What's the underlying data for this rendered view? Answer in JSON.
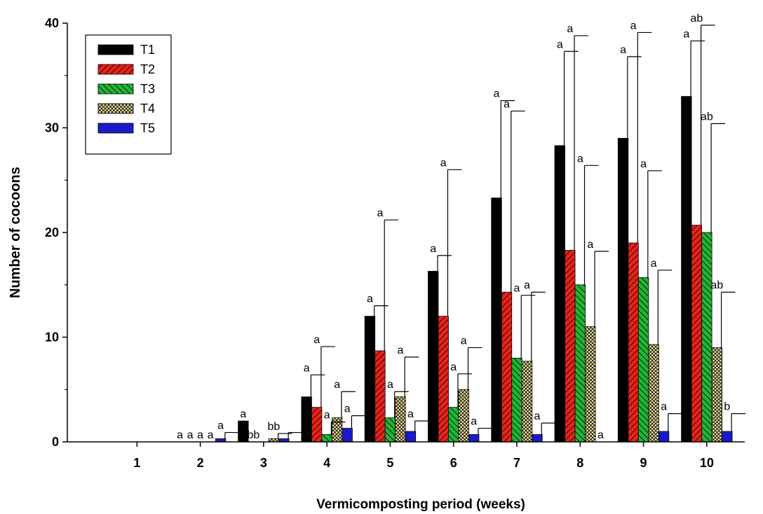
{
  "chart_data": {
    "type": "bar",
    "xlabel": "Vermicomposting period (weeks)",
    "ylabel": "Number of cocoons",
    "ylim": [
      0,
      40
    ],
    "yticks": [
      0,
      10,
      20,
      30,
      40
    ],
    "categories": [
      "1",
      "2",
      "3",
      "4",
      "5",
      "6",
      "7",
      "8",
      "9",
      "10"
    ],
    "legend_position": "top-left",
    "grid": false,
    "series": [
      {
        "name": "T1",
        "color": "#000000",
        "pattern": "solid",
        "values": [
          0,
          0,
          2.0,
          4.3,
          12.0,
          16.3,
          23.3,
          28.3,
          29.0,
          33.0
        ],
        "errors": [
          0,
          0,
          0,
          2.1,
          1.0,
          1.5,
          9.3,
          9.0,
          7.8,
          5.3
        ],
        "sig": [
          "",
          "a",
          "a",
          "a",
          "a",
          "a",
          "a",
          "a",
          "a",
          "a"
        ]
      },
      {
        "name": "T2",
        "color": "#e8231a",
        "pattern": "diag-right",
        "values": [
          0,
          0,
          0,
          3.3,
          8.7,
          12.0,
          14.3,
          18.3,
          19.0,
          20.7
        ],
        "errors": [
          0,
          0,
          0,
          5.8,
          12.5,
          14.0,
          17.3,
          20.5,
          20.1,
          19.1
        ],
        "sig": [
          "",
          "a",
          "bb",
          "a",
          "a",
          "a",
          "a",
          "a",
          "a",
          "ab"
        ]
      },
      {
        "name": "T3",
        "color": "#21b535",
        "pattern": "diag-left",
        "values": [
          0,
          0,
          0,
          0.7,
          2.3,
          3.3,
          8.0,
          15.0,
          15.7,
          20.0
        ],
        "errors": [
          0,
          0,
          0,
          1.2,
          2.5,
          3.2,
          6.0,
          11.4,
          10.2,
          10.4
        ],
        "sig": [
          "",
          "a",
          "",
          "a",
          "a",
          "a",
          "a",
          "a",
          "a",
          "ab"
        ]
      },
      {
        "name": "T4",
        "color": "#f2e6a0",
        "pattern": "cross",
        "values": [
          0,
          0,
          0.3,
          2.3,
          4.3,
          5.0,
          7.7,
          11.0,
          9.3,
          9.0
        ],
        "errors": [
          0,
          0,
          0.5,
          2.5,
          3.8,
          4.0,
          6.6,
          7.2,
          7.1,
          5.3
        ],
        "sig": [
          "",
          "a",
          "bb",
          "a",
          "a",
          "a",
          "a",
          "a",
          "a",
          "ab"
        ]
      },
      {
        "name": "T5",
        "color": "#1a1ac8",
        "pattern": "solid",
        "values": [
          0,
          0.3,
          0.3,
          1.3,
          1.0,
          0.7,
          0.7,
          0,
          1.0,
          1.0
        ],
        "errors": [
          0,
          0.6,
          0.6,
          1.2,
          1.0,
          0.6,
          1.1,
          0,
          1.7,
          1.7
        ],
        "sig": [
          "",
          "a",
          "",
          "a",
          "a",
          "a",
          "a",
          "a",
          "a",
          "b"
        ]
      }
    ]
  }
}
